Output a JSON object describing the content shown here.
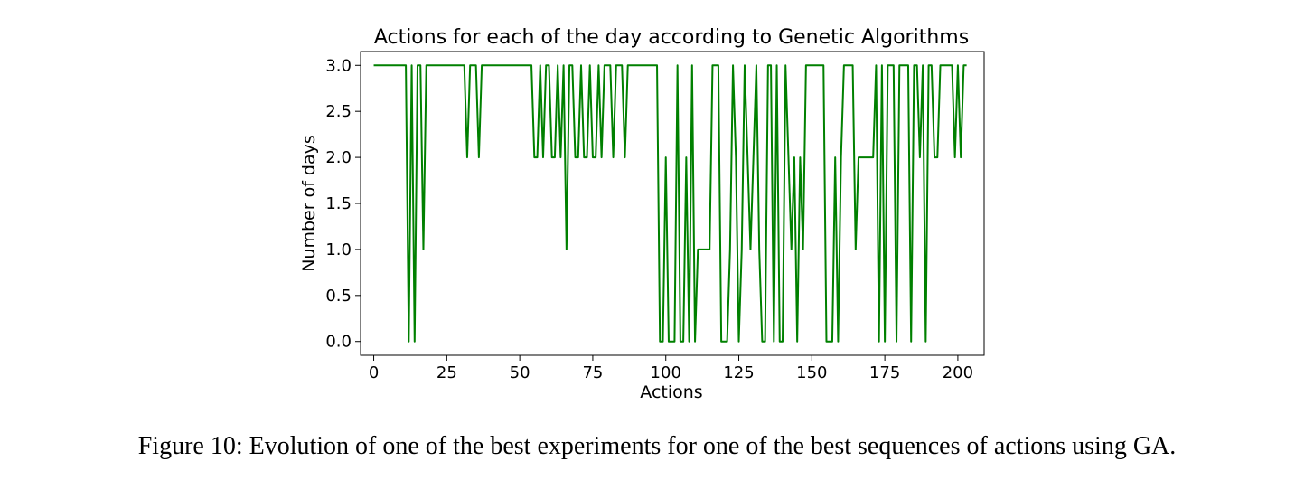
{
  "caption": "Figure 10: Evolution of one of the best experiments for one of the best sequences of actions using GA.",
  "chart_data": {
    "type": "line",
    "title": "Actions for each of the day according to Genetic Algorithms",
    "xlabel": "Actions",
    "ylabel": "Number of days",
    "xlim": [
      -4.5,
      209
    ],
    "ylim": [
      -0.15,
      3.15
    ],
    "xticks": [
      0,
      25,
      50,
      75,
      100,
      125,
      150,
      175,
      200
    ],
    "xtick_labels": [
      "0",
      "25",
      "50",
      "75",
      "100",
      "125",
      "150",
      "175",
      "200"
    ],
    "yticks": [
      0.0,
      0.5,
      1.0,
      1.5,
      2.0,
      2.5,
      3.0
    ],
    "ytick_labels": [
      "0.0",
      "0.5",
      "1.0",
      "1.5",
      "2.0",
      "2.5",
      "3.0"
    ],
    "grid": false,
    "color": "#008000",
    "series": [
      {
        "values": [
          3,
          3,
          3,
          3,
          3,
          3,
          3,
          3,
          3,
          3,
          3,
          3,
          0,
          3,
          0,
          3,
          3,
          1,
          3,
          3,
          3,
          3,
          3,
          3,
          3,
          3,
          3,
          3,
          3,
          3,
          3,
          3,
          2,
          3,
          3,
          3,
          2,
          3,
          3,
          3,
          3,
          3,
          3,
          3,
          3,
          3,
          3,
          3,
          3,
          3,
          3,
          3,
          3,
          3,
          3,
          2,
          2,
          3,
          2,
          3,
          3,
          2,
          2,
          3,
          2,
          3,
          1,
          3,
          3,
          2,
          2,
          3,
          2,
          2,
          3,
          2,
          2,
          3,
          2,
          3,
          3,
          3,
          2,
          3,
          3,
          3,
          2,
          3,
          3,
          3,
          3,
          3,
          3,
          3,
          3,
          3,
          3,
          3,
          0,
          0,
          2,
          0,
          0,
          0,
          3,
          0,
          0,
          2,
          0,
          3,
          0,
          1,
          1,
          1,
          1,
          1,
          3,
          3,
          3,
          0,
          0,
          0,
          1,
          3,
          2,
          0,
          1,
          3,
          2,
          1,
          2,
          3,
          1,
          0,
          0,
          3,
          3,
          0,
          3,
          0,
          0,
          3,
          2,
          1,
          2,
          0,
          2,
          1,
          3,
          3,
          3,
          3,
          3,
          3,
          3,
          0,
          0,
          0,
          2,
          0,
          2,
          3,
          3,
          3,
          3,
          1,
          2,
          2,
          2,
          2,
          2,
          2,
          3,
          0,
          3,
          0,
          3,
          3,
          3,
          0,
          3,
          3,
          3,
          3,
          0,
          3,
          3,
          2,
          3,
          0,
          3,
          3,
          2,
          2,
          3,
          3,
          3,
          3,
          3,
          2,
          3,
          2,
          3,
          3
        ]
      }
    ]
  }
}
